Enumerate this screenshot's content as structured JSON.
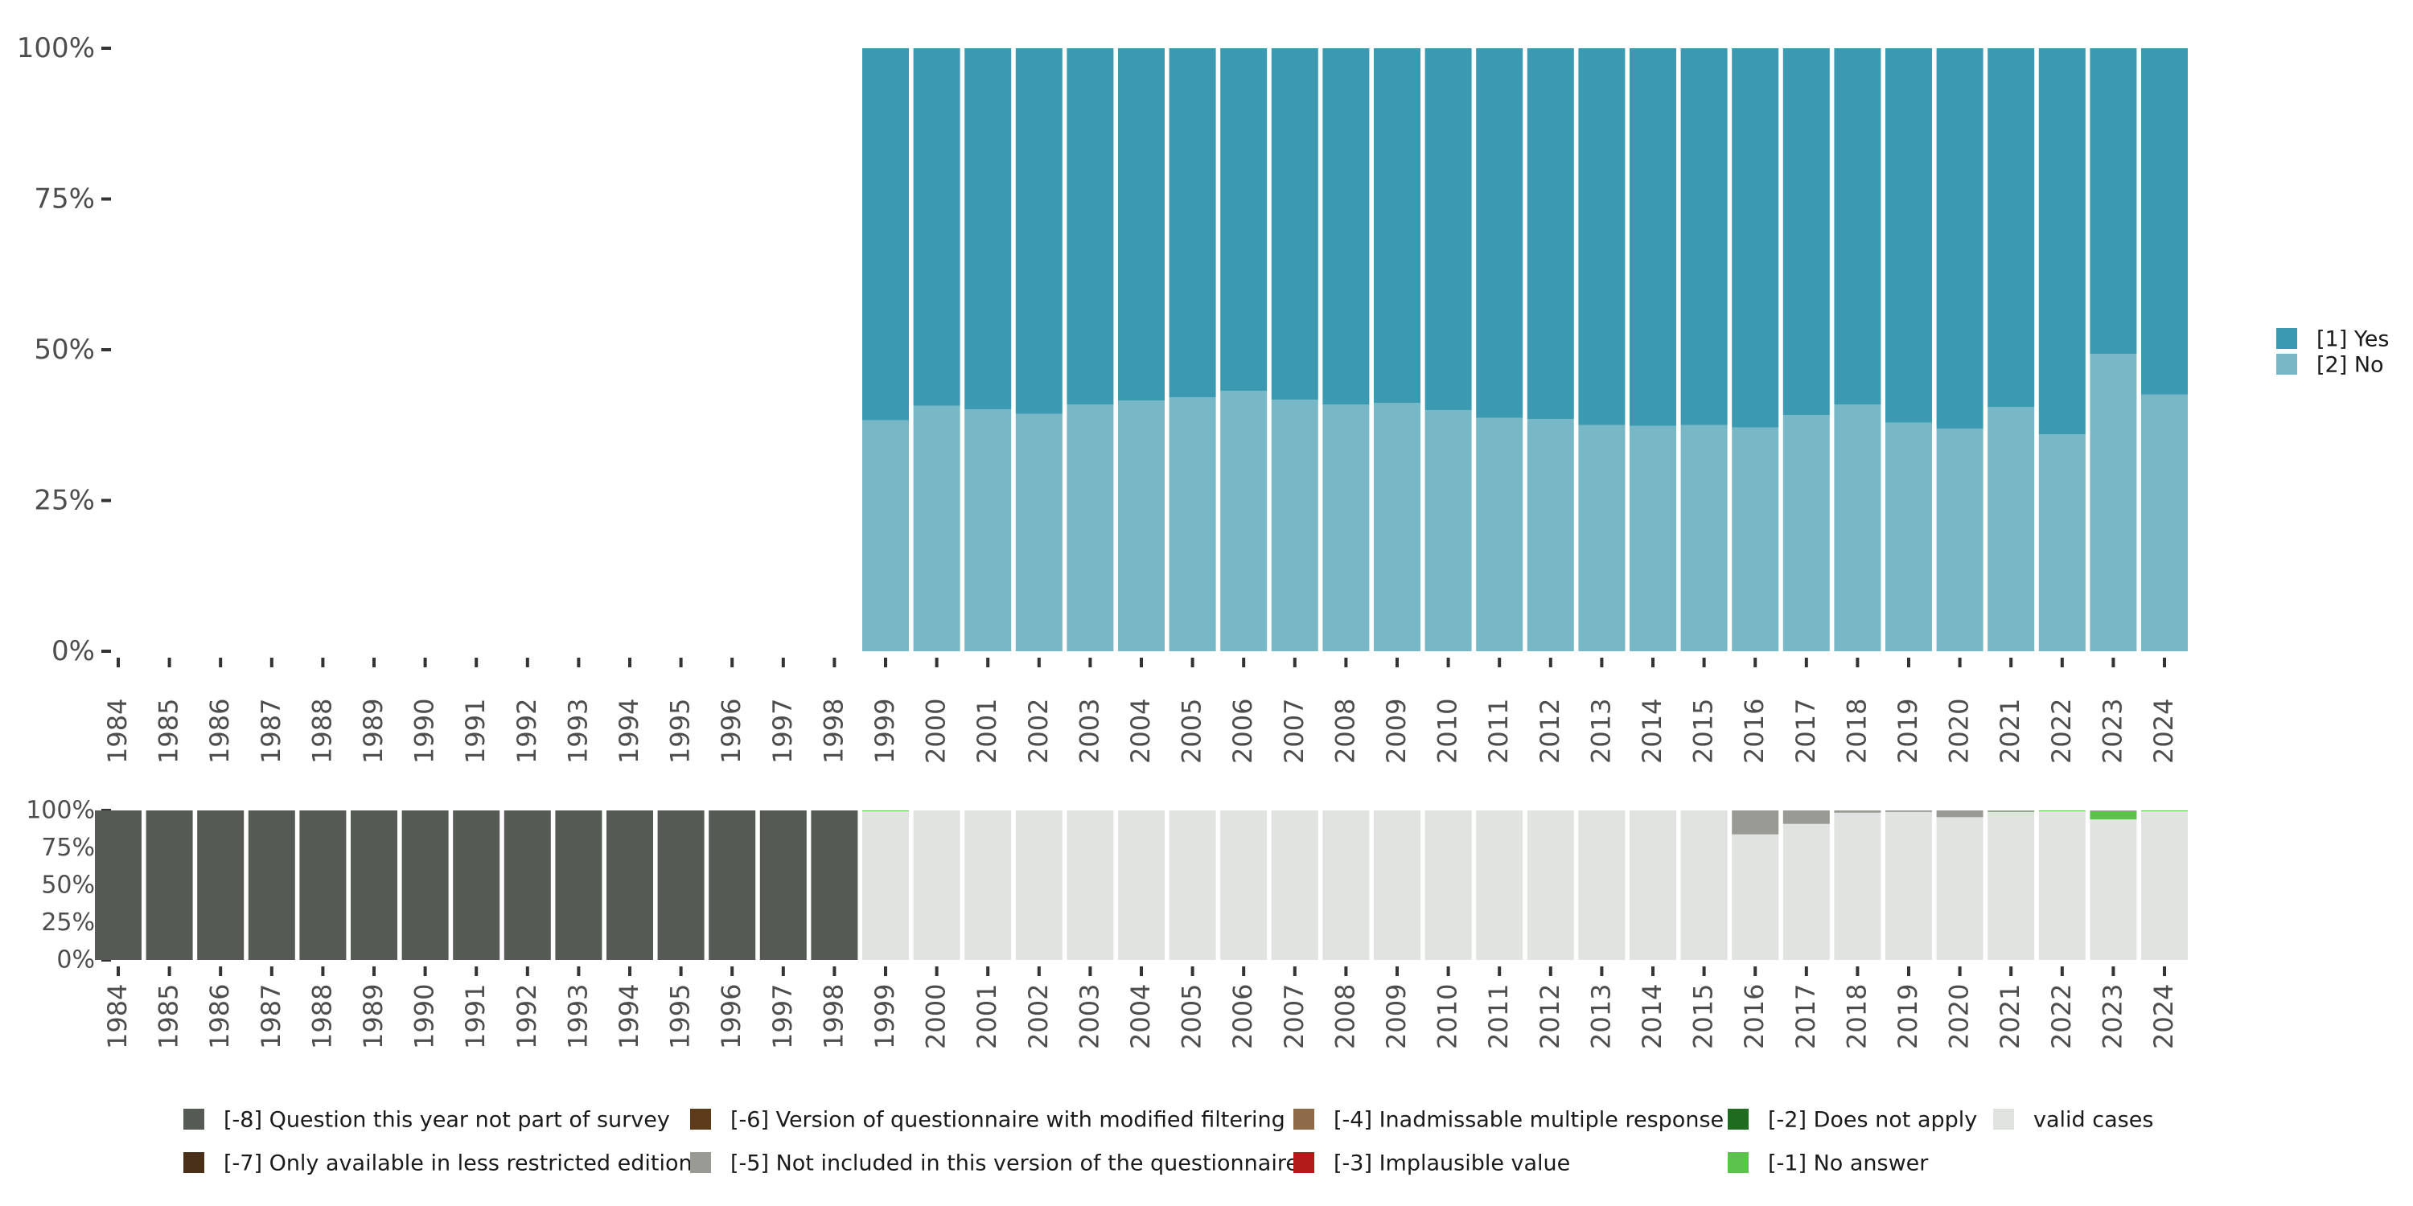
{
  "chart_data": [
    {
      "type": "bar",
      "stacked": true,
      "normalized": true,
      "categories": [
        "1984",
        "1985",
        "1986",
        "1987",
        "1988",
        "1989",
        "1990",
        "1991",
        "1992",
        "1993",
        "1994",
        "1995",
        "1996",
        "1997",
        "1998",
        "1999",
        "2000",
        "2001",
        "2002",
        "2003",
        "2004",
        "2005",
        "2006",
        "2007",
        "2008",
        "2009",
        "2010",
        "2011",
        "2012",
        "2013",
        "2014",
        "2015",
        "2016",
        "2017",
        "2018",
        "2019",
        "2020",
        "2021",
        "2022",
        "2023",
        "2024"
      ],
      "yticks": [
        "0%",
        "25%",
        "50%",
        "75%",
        "100%"
      ],
      "ylim": [
        0,
        100
      ],
      "series": [
        {
          "name": "[2] No",
          "color": "#78b7c5",
          "values": [
            null,
            null,
            null,
            null,
            null,
            null,
            null,
            null,
            null,
            null,
            null,
            null,
            null,
            null,
            null,
            38.3,
            40.7,
            40.1,
            39.4,
            40.9,
            41.6,
            42.1,
            43.2,
            41.7,
            40.9,
            41.2,
            40.0,
            38.7,
            38.5,
            37.5,
            37.4,
            37.5,
            37.1,
            39.2,
            40.9,
            37.9,
            36.9,
            40.5,
            36.0,
            49.3,
            42.6
          ]
        },
        {
          "name": "[1] Yes",
          "color": "#3b9ab2",
          "values": [
            null,
            null,
            null,
            null,
            null,
            null,
            null,
            null,
            null,
            null,
            null,
            null,
            null,
            null,
            null,
            61.7,
            59.3,
            59.9,
            60.6,
            59.1,
            58.4,
            57.9,
            56.8,
            58.3,
            59.1,
            58.8,
            60.0,
            61.3,
            61.5,
            62.5,
            62.6,
            62.5,
            62.9,
            60.8,
            59.1,
            62.1,
            63.1,
            59.5,
            64.0,
            50.7,
            57.4
          ]
        }
      ],
      "legend": {
        "position": "right",
        "items": [
          {
            "label": "[1] Yes",
            "color": "#3b9ab2"
          },
          {
            "label": "[2] No",
            "color": "#78b7c5"
          }
        ]
      }
    },
    {
      "type": "bar",
      "stacked": true,
      "normalized": true,
      "categories": [
        "1984",
        "1985",
        "1986",
        "1987",
        "1988",
        "1989",
        "1990",
        "1991",
        "1992",
        "1993",
        "1994",
        "1995",
        "1996",
        "1997",
        "1998",
        "1999",
        "2000",
        "2001",
        "2002",
        "2003",
        "2004",
        "2005",
        "2006",
        "2007",
        "2008",
        "2009",
        "2010",
        "2011",
        "2012",
        "2013",
        "2014",
        "2015",
        "2016",
        "2017",
        "2018",
        "2019",
        "2020",
        "2021",
        "2022",
        "2023",
        "2024"
      ],
      "yticks": [
        "0%",
        "25%",
        "50%",
        "75%",
        "100%"
      ],
      "ylim": [
        0,
        100
      ],
      "series": [
        {
          "name": "valid cases",
          "color": "#e0e3df",
          "values": [
            0,
            0,
            0,
            0,
            0,
            0,
            0,
            0,
            0,
            0,
            0,
            0,
            0,
            0,
            0,
            99.5,
            100,
            100,
            100,
            100,
            100,
            100,
            100,
            100,
            100,
            100,
            100,
            100,
            100,
            100,
            100,
            100,
            84,
            91,
            98.5,
            99,
            95.5,
            99,
            99.5,
            94,
            99.5
          ]
        },
        {
          "name": "[-1] No answer",
          "color": "#5bc24b",
          "values": [
            0,
            0,
            0,
            0,
            0,
            0,
            0,
            0,
            0,
            0,
            0,
            0,
            0,
            0,
            0,
            0.5,
            0,
            0,
            0,
            0,
            0,
            0,
            0,
            0,
            0,
            0,
            0,
            0,
            0,
            0,
            0,
            0,
            0,
            0,
            0,
            0,
            0,
            0.5,
            0.5,
            5.5,
            0.5
          ]
        },
        {
          "name": "[-5] Not included in this version of the questionnaire",
          "color": "#989a93",
          "values": [
            0,
            0,
            0,
            0,
            0,
            0,
            0,
            0,
            0,
            0,
            0,
            0,
            0,
            0,
            0,
            0,
            0,
            0,
            0,
            0,
            0,
            0,
            0,
            0,
            0,
            0,
            0,
            0,
            0,
            0,
            0,
            0,
            16,
            9,
            1.5,
            1,
            4.5,
            0.5,
            0,
            0.5,
            0
          ]
        },
        {
          "name": "[-8] Question this year not part of survey",
          "color": "#555b54",
          "values": [
            100,
            100,
            100,
            100,
            100,
            100,
            100,
            100,
            100,
            100,
            100,
            100,
            100,
            100,
            100,
            0,
            0,
            0,
            0,
            0,
            0,
            0,
            0,
            0,
            0,
            0,
            0,
            0,
            0,
            0,
            0,
            0,
            0,
            0,
            0,
            0,
            0,
            0,
            0,
            0,
            0
          ]
        }
      ],
      "legend": {
        "position": "bottom",
        "items": [
          {
            "label": "[-8] Question this year not part of survey",
            "color": "#555b54"
          },
          {
            "label": "[-7] Only available in less restricted edition",
            "color": "#4a3018"
          },
          {
            "label": "[-6] Version of questionnaire with modified filtering",
            "color": "#5d3a1a"
          },
          {
            "label": "[-5] Not included in this version of the questionnaire",
            "color": "#989a93"
          },
          {
            "label": "[-4] Inadmissable multiple response",
            "color": "#8e6a48"
          },
          {
            "label": "[-3] Implausible value",
            "color": "#b31b1b"
          },
          {
            "label": "[-2] Does not apply",
            "color": "#1f6b1f"
          },
          {
            "label": "[-1] No answer",
            "color": "#5bc24b"
          },
          {
            "label": "valid cases",
            "color": "#e0e3df"
          }
        ]
      }
    }
  ]
}
